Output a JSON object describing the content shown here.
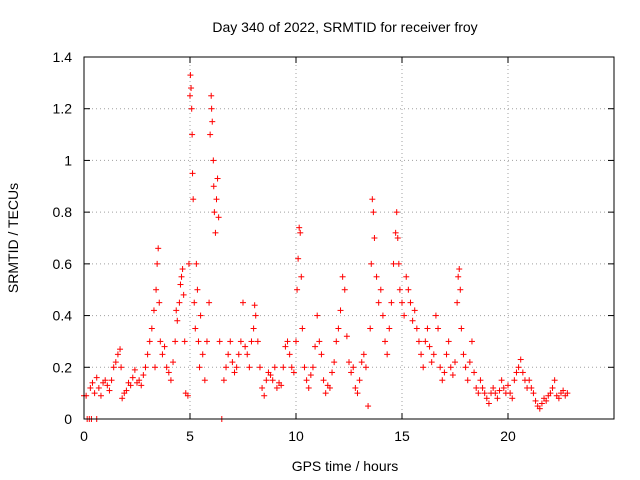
{
  "chart_data": {
    "type": "scatter",
    "title": "Day 340 of 2022, SRMTID for receiver froy",
    "xlabel": "GPS time / hours",
    "ylabel": "SRMTID / TECUs",
    "xlim": [
      0,
      25
    ],
    "ylim": [
      0,
      1.4
    ],
    "xticks": [
      0,
      5,
      10,
      15,
      20
    ],
    "yticks": [
      0,
      0.2,
      0.4,
      0.6,
      0.8,
      1.0,
      1.2,
      1.4
    ],
    "xtick_labels": [
      "0",
      "5",
      "10",
      "15",
      "20"
    ],
    "ytick_labels": [
      "0",
      "0.2",
      "0.4",
      "0.6",
      "0.8",
      "1",
      "1.2",
      "1.4"
    ],
    "grid": true,
    "marker": "+",
    "color": "#ff0000",
    "series": [
      {
        "name": "SRMTID",
        "points": [
          [
            0.0,
            0.09
          ],
          [
            0.1,
            0.09
          ],
          [
            0.15,
            0.0
          ],
          [
            0.25,
            0.0
          ],
          [
            0.35,
            0.0
          ],
          [
            0.6,
            0.0
          ],
          [
            0.3,
            0.12
          ],
          [
            0.4,
            0.14
          ],
          [
            0.5,
            0.1
          ],
          [
            0.6,
            0.16
          ],
          [
            0.7,
            0.12
          ],
          [
            0.8,
            0.09
          ],
          [
            0.9,
            0.14
          ],
          [
            1.0,
            0.15
          ],
          [
            1.1,
            0.13
          ],
          [
            1.2,
            0.11
          ],
          [
            1.3,
            0.15
          ],
          [
            1.4,
            0.2
          ],
          [
            1.5,
            0.22
          ],
          [
            1.6,
            0.25
          ],
          [
            1.7,
            0.27
          ],
          [
            1.75,
            0.2
          ],
          [
            1.8,
            0.08
          ],
          [
            1.9,
            0.1
          ],
          [
            2.0,
            0.11
          ],
          [
            2.1,
            0.14
          ],
          [
            2.2,
            0.13
          ],
          [
            2.3,
            0.16
          ],
          [
            2.4,
            0.19
          ],
          [
            2.5,
            0.14
          ],
          [
            2.6,
            0.15
          ],
          [
            2.7,
            0.13
          ],
          [
            2.8,
            0.17
          ],
          [
            2.9,
            0.2
          ],
          [
            3.0,
            0.25
          ],
          [
            3.1,
            0.3
          ],
          [
            3.2,
            0.35
          ],
          [
            3.3,
            0.42
          ],
          [
            3.35,
            0.2
          ],
          [
            3.4,
            0.5
          ],
          [
            3.45,
            0.6
          ],
          [
            3.5,
            0.66
          ],
          [
            3.55,
            0.45
          ],
          [
            3.6,
            0.3
          ],
          [
            3.7,
            0.25
          ],
          [
            3.8,
            0.28
          ],
          [
            3.9,
            0.2
          ],
          [
            4.0,
            0.18
          ],
          [
            4.1,
            0.15
          ],
          [
            4.2,
            0.22
          ],
          [
            4.3,
            0.3
          ],
          [
            4.35,
            0.42
          ],
          [
            4.4,
            0.38
          ],
          [
            4.5,
            0.45
          ],
          [
            4.55,
            0.52
          ],
          [
            4.6,
            0.55
          ],
          [
            4.65,
            0.58
          ],
          [
            4.7,
            0.48
          ],
          [
            4.75,
            0.3
          ],
          [
            4.8,
            0.1
          ],
          [
            4.9,
            0.09
          ],
          [
            4.95,
            0.6
          ],
          [
            5.0,
            1.25
          ],
          [
            5.02,
            1.33
          ],
          [
            5.05,
            1.28
          ],
          [
            5.08,
            1.2
          ],
          [
            5.1,
            1.1
          ],
          [
            5.12,
            0.95
          ],
          [
            5.15,
            0.85
          ],
          [
            5.2,
            0.45
          ],
          [
            5.25,
            0.35
          ],
          [
            5.3,
            0.6
          ],
          [
            5.35,
            0.5
          ],
          [
            5.4,
            0.3
          ],
          [
            5.45,
            0.2
          ],
          [
            5.5,
            0.4
          ],
          [
            5.6,
            0.25
          ],
          [
            5.7,
            0.15
          ],
          [
            5.8,
            0.3
          ],
          [
            5.9,
            0.45
          ],
          [
            5.95,
            1.1
          ],
          [
            6.0,
            1.25
          ],
          [
            6.02,
            1.2
          ],
          [
            6.05,
            1.15
          ],
          [
            6.1,
            1.0
          ],
          [
            6.12,
            0.9
          ],
          [
            6.15,
            0.8
          ],
          [
            6.2,
            0.72
          ],
          [
            6.25,
            0.85
          ],
          [
            6.3,
            0.93
          ],
          [
            6.35,
            0.78
          ],
          [
            6.4,
            0.3
          ],
          [
            6.5,
            0.0
          ],
          [
            6.6,
            0.15
          ],
          [
            6.7,
            0.2
          ],
          [
            6.8,
            0.25
          ],
          [
            6.9,
            0.3
          ],
          [
            7.0,
            0.22
          ],
          [
            7.1,
            0.18
          ],
          [
            7.2,
            0.2
          ],
          [
            7.3,
            0.25
          ],
          [
            7.4,
            0.3
          ],
          [
            7.5,
            0.45
          ],
          [
            7.6,
            0.28
          ],
          [
            7.7,
            0.25
          ],
          [
            7.8,
            0.2
          ],
          [
            7.9,
            0.3
          ],
          [
            8.0,
            0.35
          ],
          [
            8.05,
            0.44
          ],
          [
            8.1,
            0.4
          ],
          [
            8.2,
            0.3
          ],
          [
            8.3,
            0.2
          ],
          [
            8.4,
            0.12
          ],
          [
            8.5,
            0.09
          ],
          [
            8.6,
            0.15
          ],
          [
            8.7,
            0.18
          ],
          [
            8.8,
            0.17
          ],
          [
            8.9,
            0.15
          ],
          [
            9.0,
            0.2
          ],
          [
            9.1,
            0.12
          ],
          [
            9.2,
            0.14
          ],
          [
            9.3,
            0.13
          ],
          [
            9.4,
            0.2
          ],
          [
            9.5,
            0.28
          ],
          [
            9.6,
            0.3
          ],
          [
            9.7,
            0.25
          ],
          [
            9.8,
            0.2
          ],
          [
            9.9,
            0.18
          ],
          [
            10.0,
            0.3
          ],
          [
            10.05,
            0.5
          ],
          [
            10.1,
            0.62
          ],
          [
            10.15,
            0.74
          ],
          [
            10.2,
            0.72
          ],
          [
            10.25,
            0.55
          ],
          [
            10.3,
            0.35
          ],
          [
            10.4,
            0.2
          ],
          [
            10.5,
            0.15
          ],
          [
            10.6,
            0.12
          ],
          [
            10.7,
            0.17
          ],
          [
            10.8,
            0.2
          ],
          [
            10.9,
            0.28
          ],
          [
            11.0,
            0.4
          ],
          [
            11.1,
            0.3
          ],
          [
            11.2,
            0.25
          ],
          [
            11.3,
            0.15
          ],
          [
            11.4,
            0.1
          ],
          [
            11.5,
            0.13
          ],
          [
            11.6,
            0.12
          ],
          [
            11.7,
            0.18
          ],
          [
            11.8,
            0.22
          ],
          [
            11.9,
            0.3
          ],
          [
            12.0,
            0.35
          ],
          [
            12.1,
            0.42
          ],
          [
            12.2,
            0.55
          ],
          [
            12.3,
            0.5
          ],
          [
            12.4,
            0.32
          ],
          [
            12.5,
            0.22
          ],
          [
            12.6,
            0.18
          ],
          [
            12.7,
            0.2
          ],
          [
            12.8,
            0.12
          ],
          [
            12.9,
            0.1
          ],
          [
            13.0,
            0.15
          ],
          [
            13.1,
            0.22
          ],
          [
            13.2,
            0.25
          ],
          [
            13.3,
            0.2
          ],
          [
            13.4,
            0.05
          ],
          [
            13.5,
            0.35
          ],
          [
            13.55,
            0.6
          ],
          [
            13.6,
            0.85
          ],
          [
            13.65,
            0.8
          ],
          [
            13.7,
            0.7
          ],
          [
            13.8,
            0.55
          ],
          [
            13.9,
            0.45
          ],
          [
            14.0,
            0.5
          ],
          [
            14.1,
            0.4
          ],
          [
            14.2,
            0.3
          ],
          [
            14.3,
            0.25
          ],
          [
            14.4,
            0.35
          ],
          [
            14.5,
            0.45
          ],
          [
            14.6,
            0.6
          ],
          [
            14.7,
            0.72
          ],
          [
            14.75,
            0.8
          ],
          [
            14.8,
            0.7
          ],
          [
            14.85,
            0.6
          ],
          [
            14.9,
            0.5
          ],
          [
            15.0,
            0.45
          ],
          [
            15.1,
            0.4
          ],
          [
            15.2,
            0.55
          ],
          [
            15.3,
            0.5
          ],
          [
            15.4,
            0.45
          ],
          [
            15.5,
            0.38
          ],
          [
            15.6,
            0.42
          ],
          [
            15.7,
            0.35
          ],
          [
            15.8,
            0.3
          ],
          [
            15.9,
            0.25
          ],
          [
            16.0,
            0.2
          ],
          [
            16.1,
            0.3
          ],
          [
            16.2,
            0.35
          ],
          [
            16.3,
            0.28
          ],
          [
            16.4,
            0.22
          ],
          [
            16.5,
            0.25
          ],
          [
            16.6,
            0.4
          ],
          [
            16.7,
            0.35
          ],
          [
            16.8,
            0.2
          ],
          [
            16.9,
            0.15
          ],
          [
            17.0,
            0.18
          ],
          [
            17.1,
            0.25
          ],
          [
            17.2,
            0.3
          ],
          [
            17.3,
            0.2
          ],
          [
            17.4,
            0.17
          ],
          [
            17.5,
            0.22
          ],
          [
            17.6,
            0.45
          ],
          [
            17.65,
            0.55
          ],
          [
            17.7,
            0.58
          ],
          [
            17.75,
            0.5
          ],
          [
            17.8,
            0.35
          ],
          [
            17.9,
            0.25
          ],
          [
            18.0,
            0.2
          ],
          [
            18.1,
            0.15
          ],
          [
            18.2,
            0.22
          ],
          [
            18.3,
            0.3
          ],
          [
            18.4,
            0.18
          ],
          [
            18.5,
            0.12
          ],
          [
            18.6,
            0.1
          ],
          [
            18.7,
            0.15
          ],
          [
            18.8,
            0.12
          ],
          [
            18.9,
            0.1
          ],
          [
            19.0,
            0.08
          ],
          [
            19.1,
            0.06
          ],
          [
            19.2,
            0.1
          ],
          [
            19.3,
            0.12
          ],
          [
            19.4,
            0.1
          ],
          [
            19.5,
            0.08
          ],
          [
            19.6,
            0.11
          ],
          [
            19.7,
            0.15
          ],
          [
            19.8,
            0.12
          ],
          [
            19.9,
            0.1
          ],
          [
            20.0,
            0.13
          ],
          [
            20.1,
            0.1
          ],
          [
            20.2,
            0.08
          ],
          [
            20.3,
            0.15
          ],
          [
            20.4,
            0.18
          ],
          [
            20.5,
            0.2
          ],
          [
            20.6,
            0.23
          ],
          [
            20.7,
            0.18
          ],
          [
            20.8,
            0.15
          ],
          [
            20.9,
            0.12
          ],
          [
            21.0,
            0.15
          ],
          [
            21.1,
            0.12
          ],
          [
            21.2,
            0.1
          ],
          [
            21.3,
            0.07
          ],
          [
            21.4,
            0.05
          ],
          [
            21.5,
            0.04
          ],
          [
            21.6,
            0.06
          ],
          [
            21.7,
            0.08
          ],
          [
            21.8,
            0.07
          ],
          [
            21.9,
            0.09
          ],
          [
            22.0,
            0.1
          ],
          [
            22.1,
            0.12
          ],
          [
            22.2,
            0.15
          ],
          [
            22.3,
            0.09
          ],
          [
            22.4,
            0.08
          ],
          [
            22.5,
            0.1
          ],
          [
            22.6,
            0.11
          ],
          [
            22.7,
            0.09
          ],
          [
            22.8,
            0.1
          ]
        ]
      }
    ]
  }
}
